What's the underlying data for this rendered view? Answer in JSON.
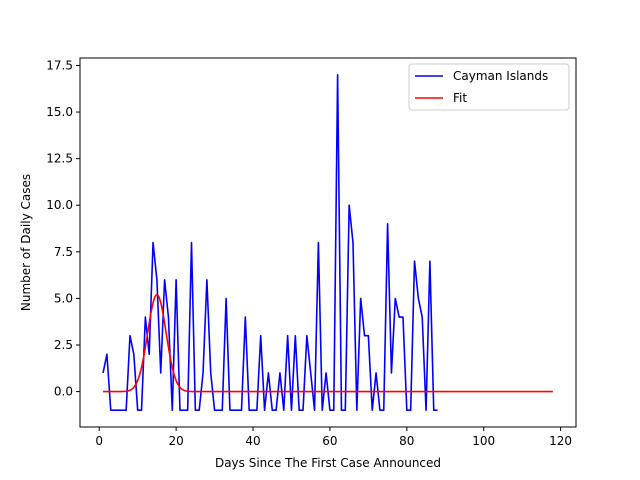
{
  "chart_data": {
    "type": "line",
    "title": "",
    "xlabel": "Days Since The First Case Announced",
    "ylabel": "Number of Daily Cases",
    "xlim": [
      -5,
      124
    ],
    "ylim": [
      -1.9,
      17.9
    ],
    "xticks": [
      0,
      20,
      40,
      60,
      80,
      100,
      120
    ],
    "yticks": [
      0.0,
      2.5,
      5.0,
      7.5,
      10.0,
      12.5,
      15.0,
      17.5
    ],
    "xtick_labels": [
      "0",
      "20",
      "40",
      "60",
      "80",
      "100",
      "120"
    ],
    "ytick_labels": [
      "0.0",
      "2.5",
      "5.0",
      "7.5",
      "10.0",
      "12.5",
      "15.0",
      "17.5"
    ],
    "grid": false,
    "legend_position": "top-right",
    "series": [
      {
        "name": "Cayman Islands",
        "color": "#0000ff",
        "x": [
          1,
          2,
          3,
          4,
          5,
          6,
          7,
          8,
          9,
          10,
          11,
          12,
          13,
          14,
          15,
          16,
          17,
          18,
          19,
          20,
          21,
          22,
          23,
          24,
          25,
          26,
          27,
          28,
          29,
          30,
          31,
          32,
          33,
          34,
          35,
          36,
          37,
          38,
          39,
          40,
          41,
          42,
          43,
          44,
          45,
          46,
          47,
          48,
          49,
          50,
          51,
          52,
          53,
          54,
          55,
          56,
          57,
          58,
          59,
          60,
          61,
          62,
          63,
          64,
          65,
          66,
          67,
          68,
          69,
          70,
          71,
          72,
          73,
          74,
          75,
          76,
          77,
          78,
          79,
          80,
          81,
          82,
          83,
          84,
          85,
          86,
          87,
          88
        ],
        "y": [
          1,
          2,
          -1,
          -1,
          -1,
          -1,
          -1,
          3,
          2,
          -1,
          -1,
          4,
          2,
          8,
          6,
          1,
          6,
          4,
          -1,
          6,
          -1,
          -1,
          -1,
          8,
          -1,
          -1,
          1,
          6,
          1,
          -1,
          -1,
          -1,
          5,
          -1,
          -1,
          -1,
          -1,
          4,
          -1,
          -1,
          -1,
          3,
          -1,
          1,
          -1,
          -1,
          1,
          -1,
          3,
          -1,
          3,
          -1,
          -1,
          3,
          1,
          -1,
          8,
          -1,
          1,
          -1,
          -1,
          17,
          -1,
          -1,
          10,
          8,
          -1,
          5,
          3,
          3,
          -1,
          1,
          -1,
          -1,
          9,
          1,
          5,
          4,
          4,
          -1,
          -1,
          7,
          5,
          4,
          -1,
          7,
          -1,
          -1
        ]
      },
      {
        "name": "Fit",
        "color": "#ff0000",
        "fit_type": "gaussian",
        "fit_amplitude": 5.2,
        "fit_center": 15,
        "fit_sigma": 2.4,
        "x_range": [
          1,
          118
        ]
      }
    ]
  }
}
